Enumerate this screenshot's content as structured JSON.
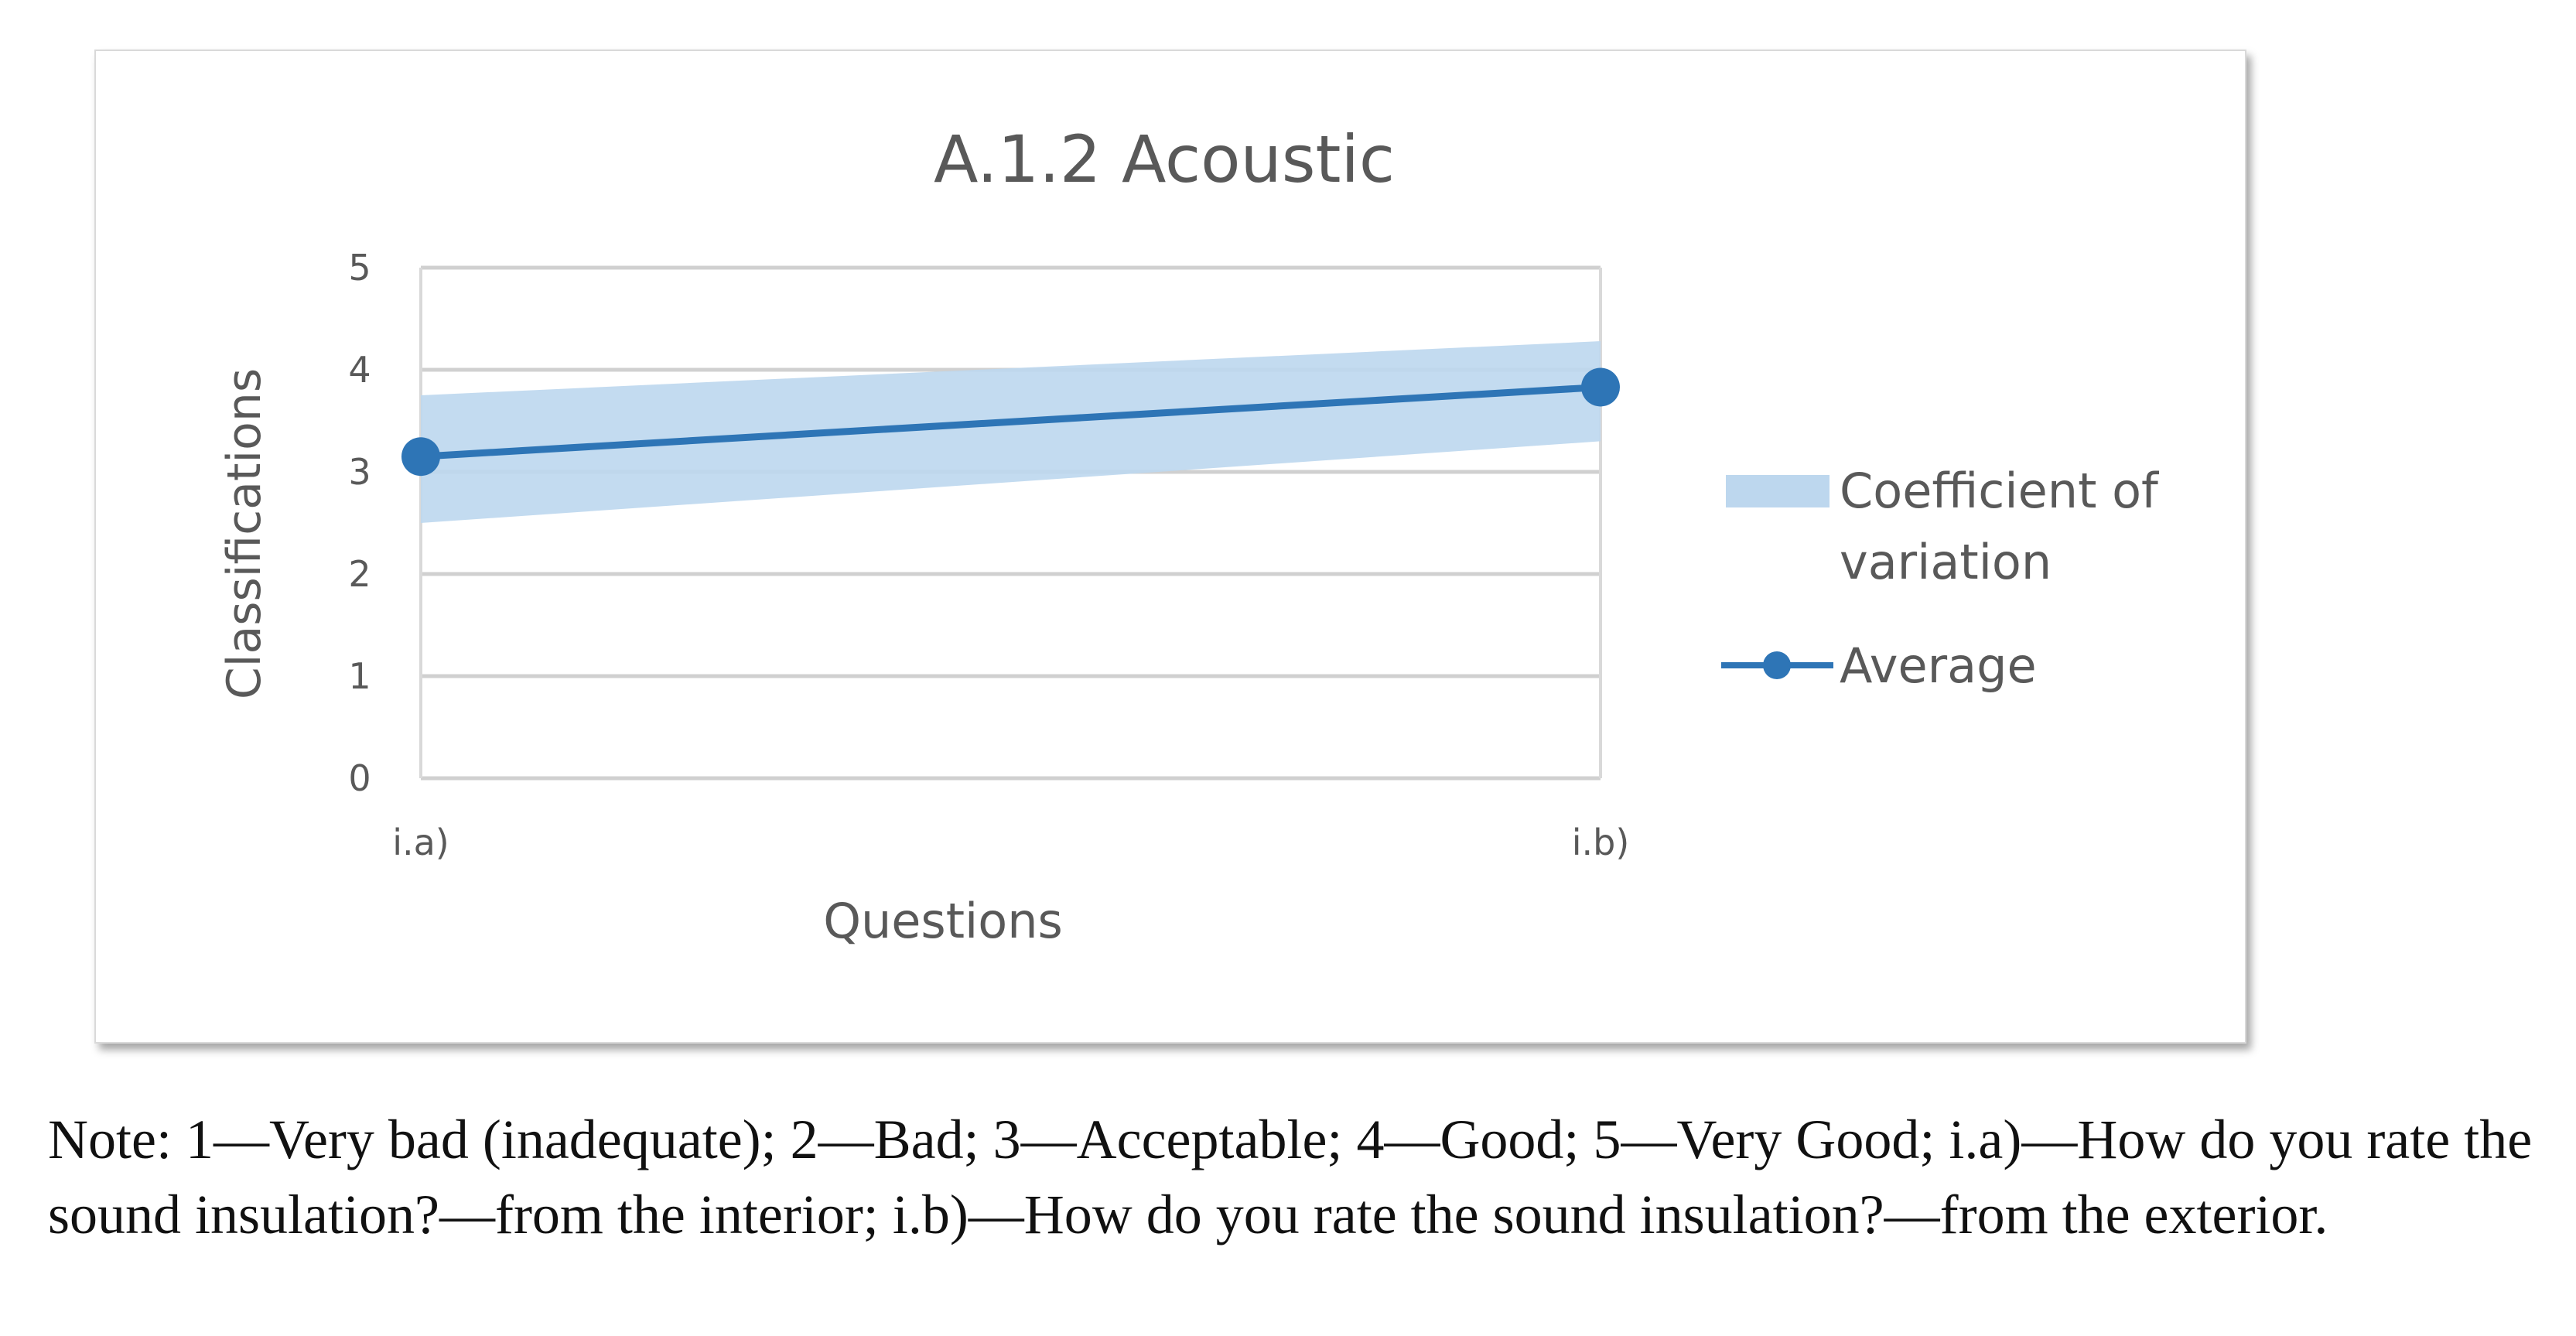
{
  "chart_data": {
    "type": "line",
    "title": "A.1.2 Acoustic",
    "xlabel": "Questions",
    "ylabel": "Classifications",
    "categories": [
      "i.a)",
      "i.b)"
    ],
    "ylim": [
      0,
      5
    ],
    "yticks": [
      0,
      1,
      2,
      3,
      4,
      5
    ],
    "grid": true,
    "legend_position": "right",
    "series": [
      {
        "name": "Coefficient of variation",
        "kind": "band",
        "lower": [
          2.5,
          3.3
        ],
        "upper": [
          3.75,
          4.28
        ],
        "color": "#bdd7ee"
      },
      {
        "name": "Average",
        "kind": "line",
        "values": [
          3.15,
          3.83
        ],
        "color": "#2e75b6"
      }
    ],
    "legend_lines": [
      "Coefficient of",
      "variation",
      "Average"
    ]
  },
  "note": "Note: 1—Very bad (inadequate); 2—Bad; 3—Acceptable; 4—Good; 5—Very Good; i.a)—How do you rate the sound insulation?—from the interior; i.b)—How do you rate the sound insulation?—from the exterior."
}
